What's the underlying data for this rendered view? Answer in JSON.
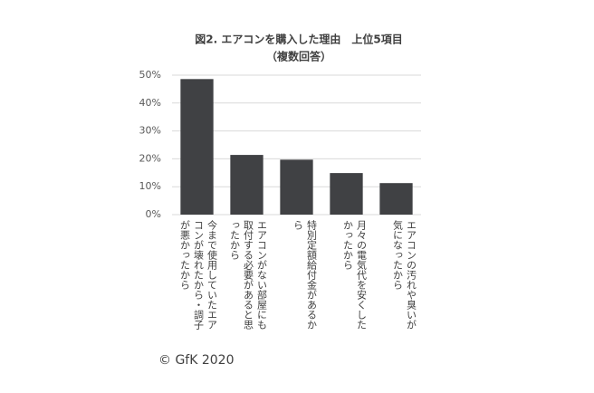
{
  "chart_data": {
    "type": "bar",
    "title": "図2. エアコンを購入した理由　上位5項目",
    "subtitle": "（複数回答）",
    "categories": [
      "今まで使用していたエアコンが壊れたから・調子が悪かったから",
      "エアコンがない部屋にも取付する必要があると思ったから",
      "特別定額給付金があるから",
      "月々の電気代を安くしたかったから",
      "エアコンの汚れや臭いが気になったから"
    ],
    "values": [
      48.6,
      21.4,
      19.7,
      14.9,
      11.3
    ],
    "color": "#404144",
    "ylim": [
      0,
      50
    ],
    "yticks": [
      {
        "value": 0,
        "label": "0%"
      },
      {
        "value": 10,
        "label": "10%"
      },
      {
        "value": 20,
        "label": "20%"
      },
      {
        "value": 30,
        "label": "30%"
      },
      {
        "value": 40,
        "label": "40%"
      },
      {
        "value": 50,
        "label": "50%"
      }
    ],
    "grid": true,
    "source": "© GfK 2020"
  }
}
